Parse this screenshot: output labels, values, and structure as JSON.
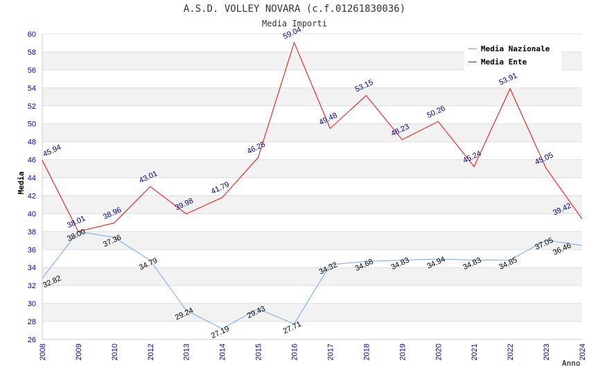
{
  "chart_data": {
    "type": "line",
    "title": "A.S.D. VOLLEY NOVARA (c.f.01261830036)",
    "subtitle": "Media Importi",
    "xlabel": "Anno",
    "ylabel": "Media",
    "ylim": [
      26,
      60
    ],
    "yticks": [
      26,
      28,
      30,
      32,
      34,
      36,
      38,
      40,
      42,
      44,
      46,
      48,
      50,
      52,
      54,
      56,
      58,
      60
    ],
    "categories": [
      "2008",
      "2009",
      "2010",
      "2012",
      "2013",
      "2014",
      "2015",
      "2016",
      "2017",
      "2018",
      "2019",
      "2020",
      "2021",
      "2022",
      "2023",
      "2024"
    ],
    "legend_position": "top-right",
    "series": [
      {
        "name": "Media Nazionale",
        "color": "#6aaaf0",
        "label_color": "#000000",
        "values": [
          32.82,
          38.0,
          37.36,
          34.79,
          29.24,
          27.19,
          29.43,
          27.71,
          34.32,
          34.68,
          34.83,
          34.94,
          34.83,
          34.85,
          37.05,
          36.46
        ]
      },
      {
        "name": "Media Ente",
        "color": "#ff0000",
        "label_color": "#00008b",
        "values": [
          45.94,
          38.01,
          38.96,
          43.01,
          39.98,
          41.79,
          46.25,
          59.04,
          49.48,
          53.15,
          48.23,
          50.26,
          45.24,
          53.91,
          45.05,
          39.42
        ]
      }
    ]
  }
}
